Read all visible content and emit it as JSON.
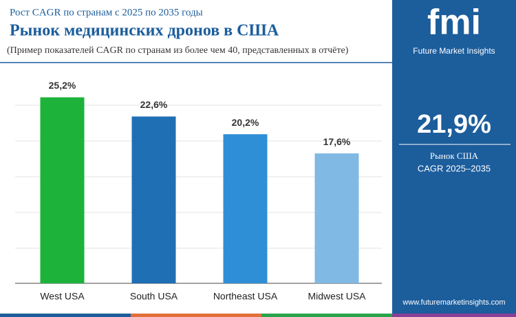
{
  "chart_data": {
    "type": "bar",
    "subtitle": "Рост CAGR по странам с 2025 по 2035 годы",
    "title": "Рынок медицинских дронов в США",
    "note": "(Пример показателей CAGR по странам из более чем 40, представленных в отчёте)",
    "categories": [
      "West USA",
      "South USA",
      "Northeast USA",
      "Midwest USA"
    ],
    "values": [
      25.2,
      22.6,
      20.2,
      17.6
    ],
    "value_labels": [
      "25,2%",
      "22,6%",
      "20,2%",
      "17,6%"
    ],
    "colors": [
      "#1db33a",
      "#1f6fb5",
      "#2f8fd6",
      "#80b9e3"
    ],
    "ylim": [
      0,
      30
    ]
  },
  "sidebar": {
    "logo": "fmi",
    "brand": "Future Market Insights",
    "value": "21,9%",
    "label_1": "Рынок США",
    "label_2": "CAGR 2025–2035",
    "url": "www.futuremarketinsights.com"
  }
}
